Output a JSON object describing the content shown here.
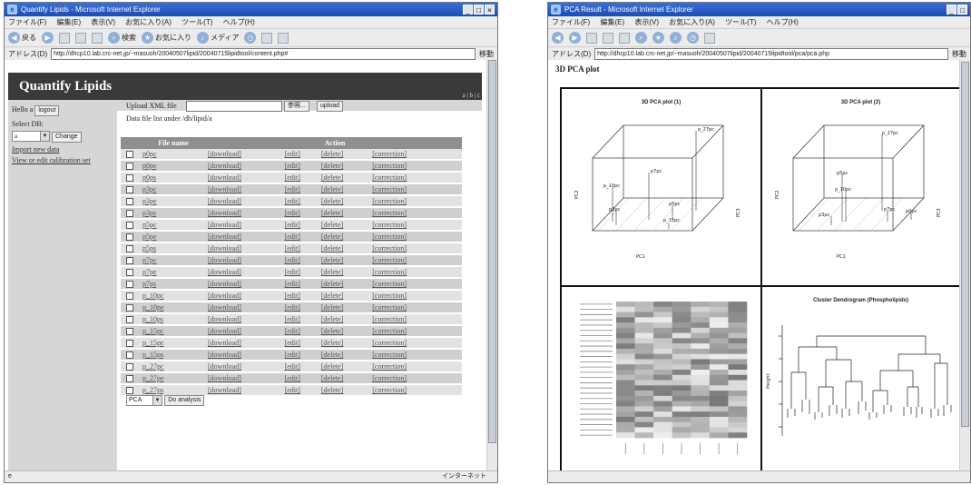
{
  "window1": {
    "title": "Quantify Lipids - Microsoft Internet Explorer",
    "menu": [
      "ファイル(F)",
      "編集(E)",
      "表示(V)",
      "お気に入り(A)",
      "ツール(T)",
      "ヘルプ(H)"
    ],
    "toolbar": {
      "back": "戻る",
      "search": "検索",
      "favorites": "お気に入り",
      "media": "メディア"
    },
    "address_label": "アドレス(D)",
    "address": "http://dhcp10.lab.crc-net.jp/~masuoh/20040507lipid/20040715lipidtool/content.php#",
    "go": "移動",
    "status_right": "インターネット",
    "page": {
      "app_title": "Quantify Lipids",
      "corner_text": "a | b | c",
      "hello": "Hello a",
      "logout": "logout",
      "select_db_label": "Select DB:",
      "db_value": "a",
      "change": "Change",
      "import_link": "Import new data",
      "calib_link": "View or edit calibration set",
      "upload_label": "Upload XML file",
      "browse": "参照...",
      "upload": "upload",
      "list_caption": "Data file list under /db/lipid/a",
      "col_file": "File name",
      "col_action": "Action",
      "actions": {
        "download": "[download]",
        "edit": "[edit]",
        "delete": "[delete]",
        "correction": "[correction]"
      },
      "files": [
        "p0pc",
        "p0pe",
        "p0ps",
        "p3pc",
        "p3pe",
        "p3ps",
        "p5pc",
        "p5pe",
        "p5ps",
        "p7pc",
        "p7pe",
        "p7ps",
        "p_10pc",
        "p_10pe",
        "p_10ps",
        "p_15pc",
        "p_15pe",
        "p_15ps",
        "p_27pc",
        "p_27pe",
        "p_27ps"
      ],
      "analysis_value": "PCA",
      "do_analysis": "Do analysis"
    }
  },
  "window2": {
    "title": "PCA Result - Microsoft Internet Explorer",
    "menu": [
      "ファイル(F)",
      "編集(E)",
      "表示(V)",
      "お気に入り(A)",
      "ツール(T)",
      "ヘルプ(H)"
    ],
    "address_label": "アドレス(D)",
    "address": "http://dhcp10.lab.crc-net.jp/~masuoh/20040507lipid/20040715lipidtool/pca/pca.php",
    "go": "移動",
    "page_title": "3D PCA plot",
    "plot1": {
      "title": "3D PCA plot (1)",
      "xlabel": "PC1",
      "ylabel": "PC2",
      "zlabel": "PC3",
      "points": [
        "p_27pc",
        "p7pc",
        "p_10pc",
        "p3pc",
        "p5pc",
        "p_15pc"
      ]
    },
    "plot2": {
      "title": "3D PCA plot (2)",
      "xlabel": "PC1",
      "ylabel": "PC2",
      "zlabel": "PC3",
      "points": [
        "p_27pc",
        "p5pc",
        "p_10pc",
        "p3pc",
        "p7pc",
        "p0pc"
      ]
    },
    "dendrogram": {
      "title": "Cluster Dendrogram (Phospholipids)",
      "ylabel": "Height"
    }
  }
}
